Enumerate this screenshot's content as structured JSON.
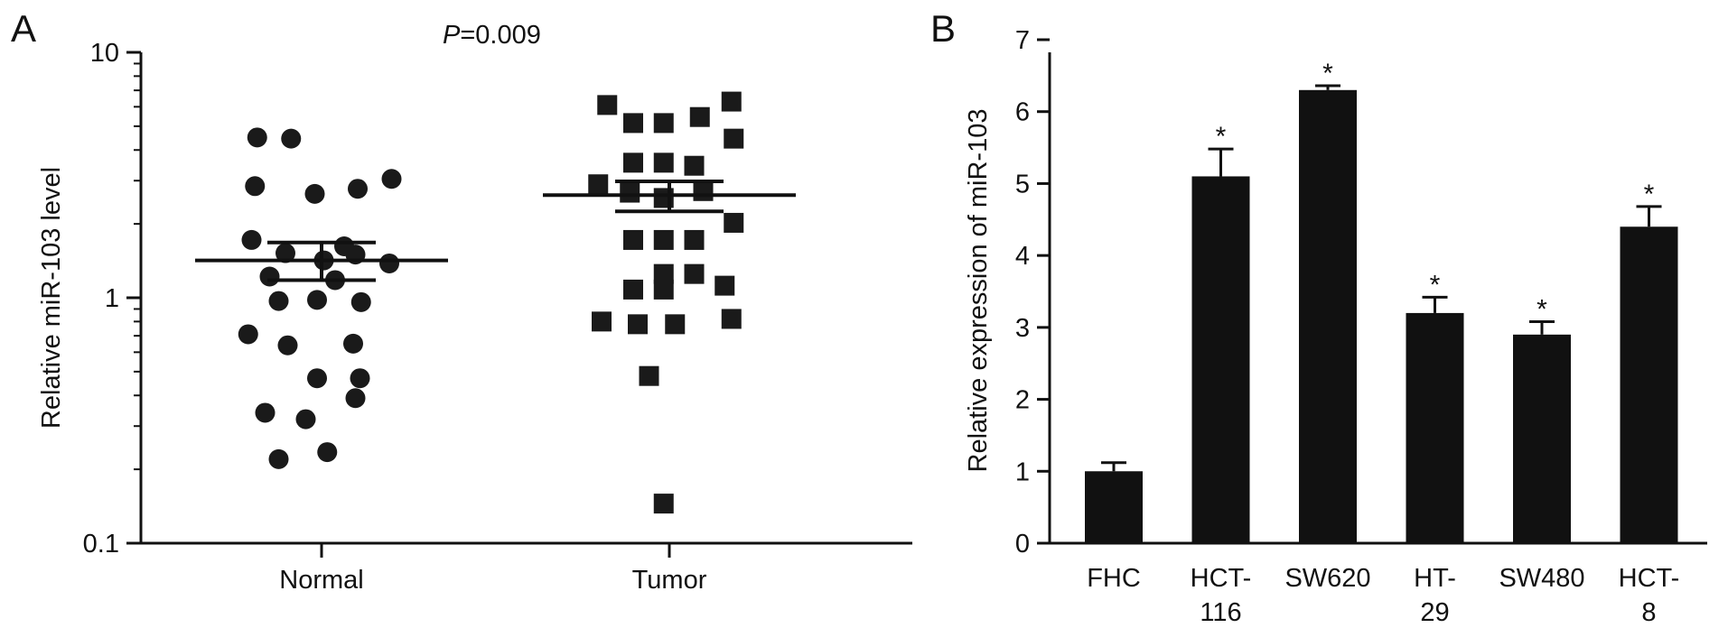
{
  "chart_data": [
    {
      "panel": "A",
      "type": "scatter",
      "ylabel": "Relative miR-103 level",
      "yscale": "log",
      "ylim": [
        0.1,
        10
      ],
      "yticks": [
        {
          "value": 0.1,
          "label": "0.1"
        },
        {
          "value": 1,
          "label": "1"
        },
        {
          "value": 10,
          "label": "10"
        }
      ],
      "annotation": {
        "prefix": "P",
        "text": "=0.009"
      },
      "categories": [
        "Normal",
        "Tumor"
      ],
      "series": [
        {
          "category": "Normal",
          "marker": "circle",
          "mean": 1.42,
          "sem": [
            1.18,
            1.68
          ],
          "points": [
            {
              "y": 4.5,
              "offset": -0.57
            },
            {
              "y": 4.45,
              "offset": -0.27
            },
            {
              "y": 2.85,
              "offset": -0.59
            },
            {
              "y": 2.65,
              "offset": -0.06
            },
            {
              "y": 2.78,
              "offset": 0.32
            },
            {
              "y": 3.05,
              "offset": 0.62
            },
            {
              "y": 1.72,
              "offset": -0.62
            },
            {
              "y": 1.52,
              "offset": -0.32
            },
            {
              "y": 1.62,
              "offset": 0.2
            },
            {
              "y": 1.42,
              "offset": 0.02
            },
            {
              "y": 1.5,
              "offset": 0.3
            },
            {
              "y": 1.38,
              "offset": 0.6
            },
            {
              "y": 1.22,
              "offset": -0.46
            },
            {
              "y": 1.18,
              "offset": 0.12
            },
            {
              "y": 0.97,
              "offset": -0.38
            },
            {
              "y": 0.98,
              "offset": -0.04
            },
            {
              "y": 0.96,
              "offset": 0.35
            },
            {
              "y": 0.71,
              "offset": -0.65
            },
            {
              "y": 0.64,
              "offset": -0.3
            },
            {
              "y": 0.65,
              "offset": 0.28
            },
            {
              "y": 0.47,
              "offset": -0.04
            },
            {
              "y": 0.47,
              "offset": 0.34
            },
            {
              "y": 0.39,
              "offset": 0.3
            },
            {
              "y": 0.34,
              "offset": -0.5
            },
            {
              "y": 0.32,
              "offset": -0.14
            },
            {
              "y": 0.22,
              "offset": -0.38
            },
            {
              "y": 0.235,
              "offset": 0.05
            }
          ]
        },
        {
          "category": "Tumor",
          "marker": "square",
          "mean": 2.62,
          "sem": [
            2.25,
            2.98
          ],
          "points": [
            {
              "y": 6.1,
              "offset": -0.55
            },
            {
              "y": 5.15,
              "offset": -0.32
            },
            {
              "y": 5.15,
              "offset": -0.05
            },
            {
              "y": 5.45,
              "offset": 0.27
            },
            {
              "y": 6.3,
              "offset": 0.55
            },
            {
              "y": 4.45,
              "offset": 0.57
            },
            {
              "y": 3.55,
              "offset": -0.32
            },
            {
              "y": 3.55,
              "offset": -0.05
            },
            {
              "y": 3.45,
              "offset": 0.22
            },
            {
              "y": 2.9,
              "offset": -0.63
            },
            {
              "y": 2.68,
              "offset": -0.35
            },
            {
              "y": 2.55,
              "offset": -0.05
            },
            {
              "y": 2.72,
              "offset": 0.3
            },
            {
              "y": 2.02,
              "offset": 0.57
            },
            {
              "y": 1.72,
              "offset": -0.32
            },
            {
              "y": 1.72,
              "offset": -0.05
            },
            {
              "y": 1.72,
              "offset": 0.22
            },
            {
              "y": 1.25,
              "offset": -0.05
            },
            {
              "y": 1.25,
              "offset": 0.22
            },
            {
              "y": 1.08,
              "offset": -0.32
            },
            {
              "y": 1.08,
              "offset": -0.05
            },
            {
              "y": 1.12,
              "offset": 0.49
            },
            {
              "y": 0.8,
              "offset": -0.6
            },
            {
              "y": 0.78,
              "offset": -0.28
            },
            {
              "y": 0.78,
              "offset": 0.05
            },
            {
              "y": 0.82,
              "offset": 0.55
            },
            {
              "y": 0.48,
              "offset": -0.18
            },
            {
              "y": 0.145,
              "offset": -0.05
            }
          ]
        }
      ]
    },
    {
      "panel": "B",
      "type": "bar",
      "ylabel": "Relative expression of miR-103",
      "ylim": [
        0,
        7
      ],
      "yticks": [
        0,
        1,
        2,
        3,
        4,
        5,
        6,
        7
      ],
      "categories": [
        {
          "lines": [
            "FHC"
          ]
        },
        {
          "lines": [
            "HCT-",
            "116"
          ]
        },
        {
          "lines": [
            "SW620"
          ]
        },
        {
          "lines": [
            "HT-",
            "29"
          ]
        },
        {
          "lines": [
            "SW480"
          ]
        },
        {
          "lines": [
            "HCT-",
            "8"
          ]
        }
      ],
      "values": [
        1.0,
        5.1,
        6.3,
        3.2,
        2.9,
        4.4
      ],
      "errors": [
        0.12,
        0.38,
        0.06,
        0.22,
        0.18,
        0.28
      ],
      "significance": [
        "",
        "*",
        "*",
        "*",
        "*",
        "*"
      ],
      "bar_color": "#111111"
    }
  ]
}
